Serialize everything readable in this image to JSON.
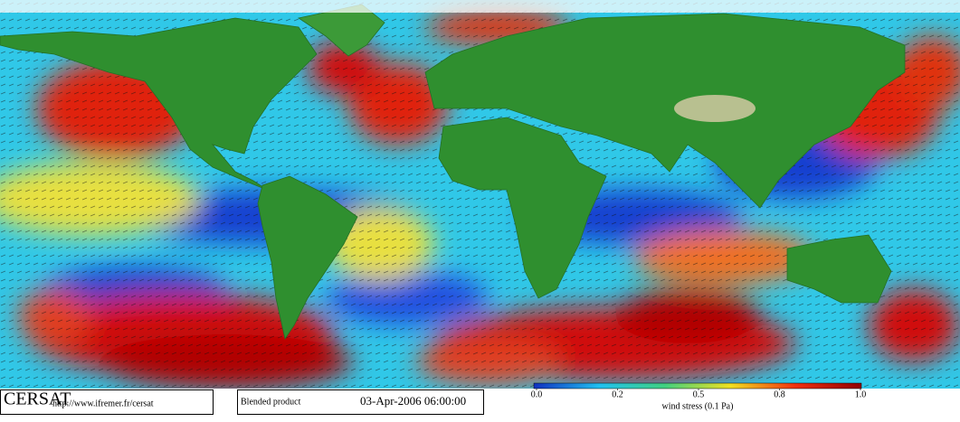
{
  "header": {
    "logo": "CERSAT",
    "url": "http://www.ifremer.fr/cersat"
  },
  "product": {
    "label": "Blended product",
    "timestamp": "03-Apr-2006 06:00:00"
  },
  "legend": {
    "ticks": [
      "0.0",
      "0.2",
      "0.5",
      "0.8",
      "1.0"
    ],
    "title": "wind stress (0.1 Pa)"
  }
}
